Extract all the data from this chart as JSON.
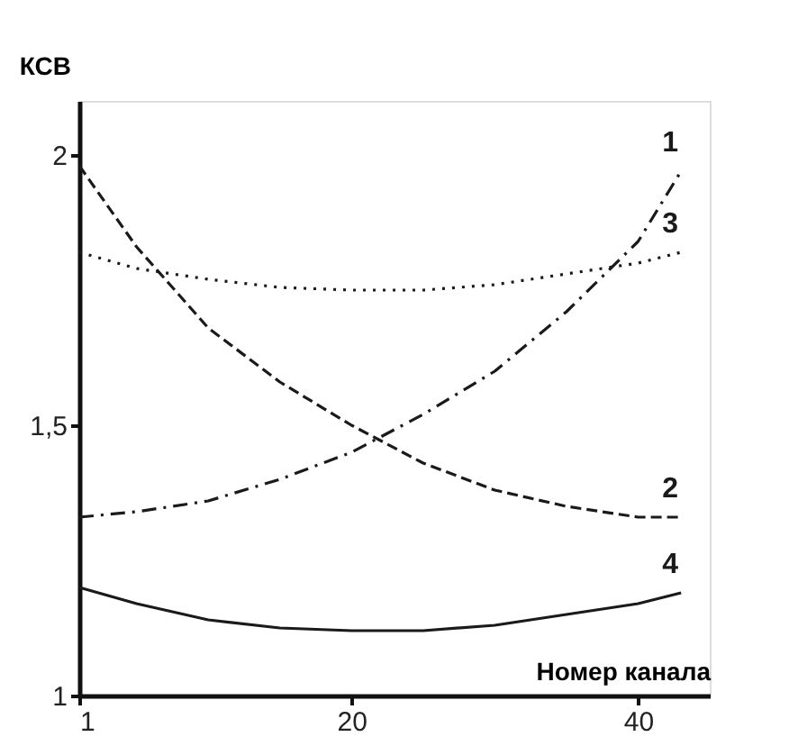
{
  "chart_data": {
    "type": "line",
    "xlabel": "Номер канала",
    "ylabel": "КСВ",
    "xlim": [
      1,
      45
    ],
    "xticks": [
      1,
      20,
      40
    ],
    "ylim": [
      1,
      2.1
    ],
    "yticks": [
      1,
      {
        "value": 1.5,
        "label": "1,5"
      },
      2
    ],
    "grid": false,
    "marker": "none",
    "series": [
      {
        "name": "1",
        "color": "#1a1a1a",
        "line_style": "dashdot",
        "x": [
          1,
          5,
          10,
          15,
          20,
          25,
          30,
          35,
          40,
          43
        ],
        "values": [
          1.33,
          1.34,
          1.36,
          1.4,
          1.45,
          1.52,
          1.6,
          1.71,
          1.84,
          1.97
        ]
      },
      {
        "name": "2",
        "color": "#1a1a1a",
        "line_style": "dashed",
        "x": [
          1,
          5,
          10,
          15,
          20,
          25,
          30,
          35,
          40,
          43
        ],
        "values": [
          1.98,
          1.83,
          1.68,
          1.58,
          1.5,
          1.43,
          1.38,
          1.35,
          1.33,
          1.33
        ]
      },
      {
        "name": "3",
        "color": "#1a1a1a",
        "line_style": "dotted",
        "x": [
          1,
          5,
          10,
          15,
          20,
          25,
          30,
          35,
          40,
          43
        ],
        "values": [
          1.82,
          1.79,
          1.77,
          1.755,
          1.75,
          1.75,
          1.76,
          1.78,
          1.8,
          1.82
        ]
      },
      {
        "name": "4",
        "color": "#1a1a1a",
        "line_style": "solid",
        "x": [
          1,
          5,
          10,
          15,
          20,
          25,
          30,
          35,
          40,
          43
        ],
        "values": [
          1.2,
          1.17,
          1.14,
          1.125,
          1.12,
          1.12,
          1.13,
          1.15,
          1.17,
          1.19
        ]
      }
    ]
  }
}
